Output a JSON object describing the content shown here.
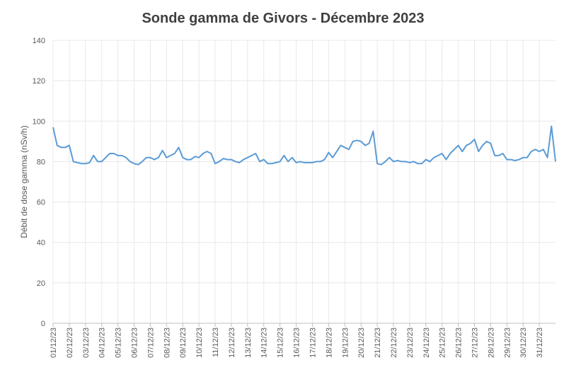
{
  "chart_data": {
    "type": "line",
    "title": "Sonde gamma de Givors - Décembre 2023",
    "y_label": "Débit de dose gamma (nSv/h)",
    "color": "#5b9bd5",
    "x": [
      1,
      1.25,
      1.5,
      1.75,
      2,
      2.25,
      2.5,
      2.75,
      3,
      3.25,
      3.5,
      3.75,
      4,
      4.25,
      4.5,
      4.75,
      5,
      5.25,
      5.5,
      5.75,
      6,
      6.25,
      6.5,
      6.75,
      7,
      7.25,
      7.5,
      7.75,
      8,
      8.25,
      8.5,
      8.75,
      9,
      9.25,
      9.5,
      9.75,
      10,
      10.25,
      10.5,
      10.75,
      11,
      11.25,
      11.5,
      11.75,
      12,
      12.25,
      12.5,
      12.75,
      13,
      13.25,
      13.5,
      13.75,
      14,
      14.25,
      14.5,
      14.75,
      15,
      15.25,
      15.5,
      15.75,
      16,
      16.25,
      16.5,
      16.75,
      17,
      17.25,
      17.5,
      17.75,
      18,
      18.25,
      18.5,
      18.75,
      19,
      19.25,
      19.5,
      19.75,
      20,
      20.25,
      20.5,
      20.75,
      21,
      21.25,
      21.5,
      21.75,
      22,
      22.25,
      22.5,
      22.75,
      23,
      23.25,
      23.5,
      23.75,
      24,
      24.25,
      24.5,
      24.75,
      25,
      25.25,
      25.5,
      25.75,
      26,
      26.25,
      26.5,
      26.75,
      27,
      27.25,
      27.5,
      27.75,
      28,
      28.25,
      28.5,
      28.75,
      29,
      29.25,
      29.5,
      29.75,
      30,
      30.25,
      30.5,
      30.75,
      31,
      31.25,
      31.5,
      31.75,
      32
    ],
    "values": [
      97,
      88,
      87,
      87,
      88,
      80,
      79.5,
      79,
      79,
      79.5,
      83,
      80,
      80,
      82,
      84,
      84,
      83,
      83,
      82,
      80,
      79,
      78.5,
      80,
      82,
      82,
      81,
      82,
      85.5,
      82,
      83,
      84,
      87,
      82,
      81,
      81,
      82.5,
      82,
      84,
      85,
      84,
      79,
      80,
      81.5,
      81,
      81,
      80,
      79.5,
      81,
      82,
      83,
      84,
      80,
      81,
      79,
      79,
      79.5,
      80,
      83,
      80,
      82,
      79.5,
      80,
      79.5,
      79.5,
      79.5,
      80,
      80,
      81,
      84.5,
      82,
      85,
      88,
      87,
      86,
      90,
      90.5,
      90,
      88,
      89,
      95,
      79,
      78.5,
      80,
      82,
      80,
      80.5,
      80,
      80,
      79.5,
      80,
      79,
      79,
      81,
      80,
      82,
      83,
      84,
      81,
      84,
      86,
      88,
      85,
      88,
      89,
      91,
      85,
      88,
      90,
      89,
      83,
      83,
      84,
      81,
      81,
      80.5,
      81,
      82,
      82,
      85,
      86,
      85,
      86,
      82,
      97.5,
      80
    ],
    "xlim": [
      1,
      32
    ],
    "xticks": [
      {
        "value": 1,
        "label": "01/12/23"
      },
      {
        "value": 2,
        "label": "02/12/23"
      },
      {
        "value": 3,
        "label": "03/12/23"
      },
      {
        "value": 4,
        "label": "04/12/23"
      },
      {
        "value": 5,
        "label": "05/12/23"
      },
      {
        "value": 6,
        "label": "06/12/23"
      },
      {
        "value": 7,
        "label": "07/12/23"
      },
      {
        "value": 8,
        "label": "08/12/23"
      },
      {
        "value": 9,
        "label": "09/12/23"
      },
      {
        "value": 10,
        "label": "10/12/23"
      },
      {
        "value": 11,
        "label": "11/12/23"
      },
      {
        "value": 12,
        "label": "12/12/23"
      },
      {
        "value": 13,
        "label": "13/12/23"
      },
      {
        "value": 14,
        "label": "14/12/23"
      },
      {
        "value": 15,
        "label": "15/12/23"
      },
      {
        "value": 16,
        "label": "16/12/23"
      },
      {
        "value": 17,
        "label": "17/12/23"
      },
      {
        "value": 18,
        "label": "18/12/23"
      },
      {
        "value": 19,
        "label": "19/12/23"
      },
      {
        "value": 20,
        "label": "20/12/23"
      },
      {
        "value": 21,
        "label": "21/12/23"
      },
      {
        "value": 22,
        "label": "22/12/23"
      },
      {
        "value": 23,
        "label": "23/12/23"
      },
      {
        "value": 24,
        "label": "24/12/23"
      },
      {
        "value": 25,
        "label": "25/12/23"
      },
      {
        "value": 26,
        "label": "26/12/23"
      },
      {
        "value": 27,
        "label": "27/12/23"
      },
      {
        "value": 28,
        "label": "28/12/23"
      },
      {
        "value": 29,
        "label": "29/12/23"
      },
      {
        "value": 30,
        "label": "30/12/23"
      },
      {
        "value": 31,
        "label": "31/12/23"
      }
    ],
    "ylim": [
      0,
      140
    ],
    "yticks": [
      0,
      20,
      40,
      60,
      80,
      100,
      120,
      140
    ],
    "grid": true
  }
}
